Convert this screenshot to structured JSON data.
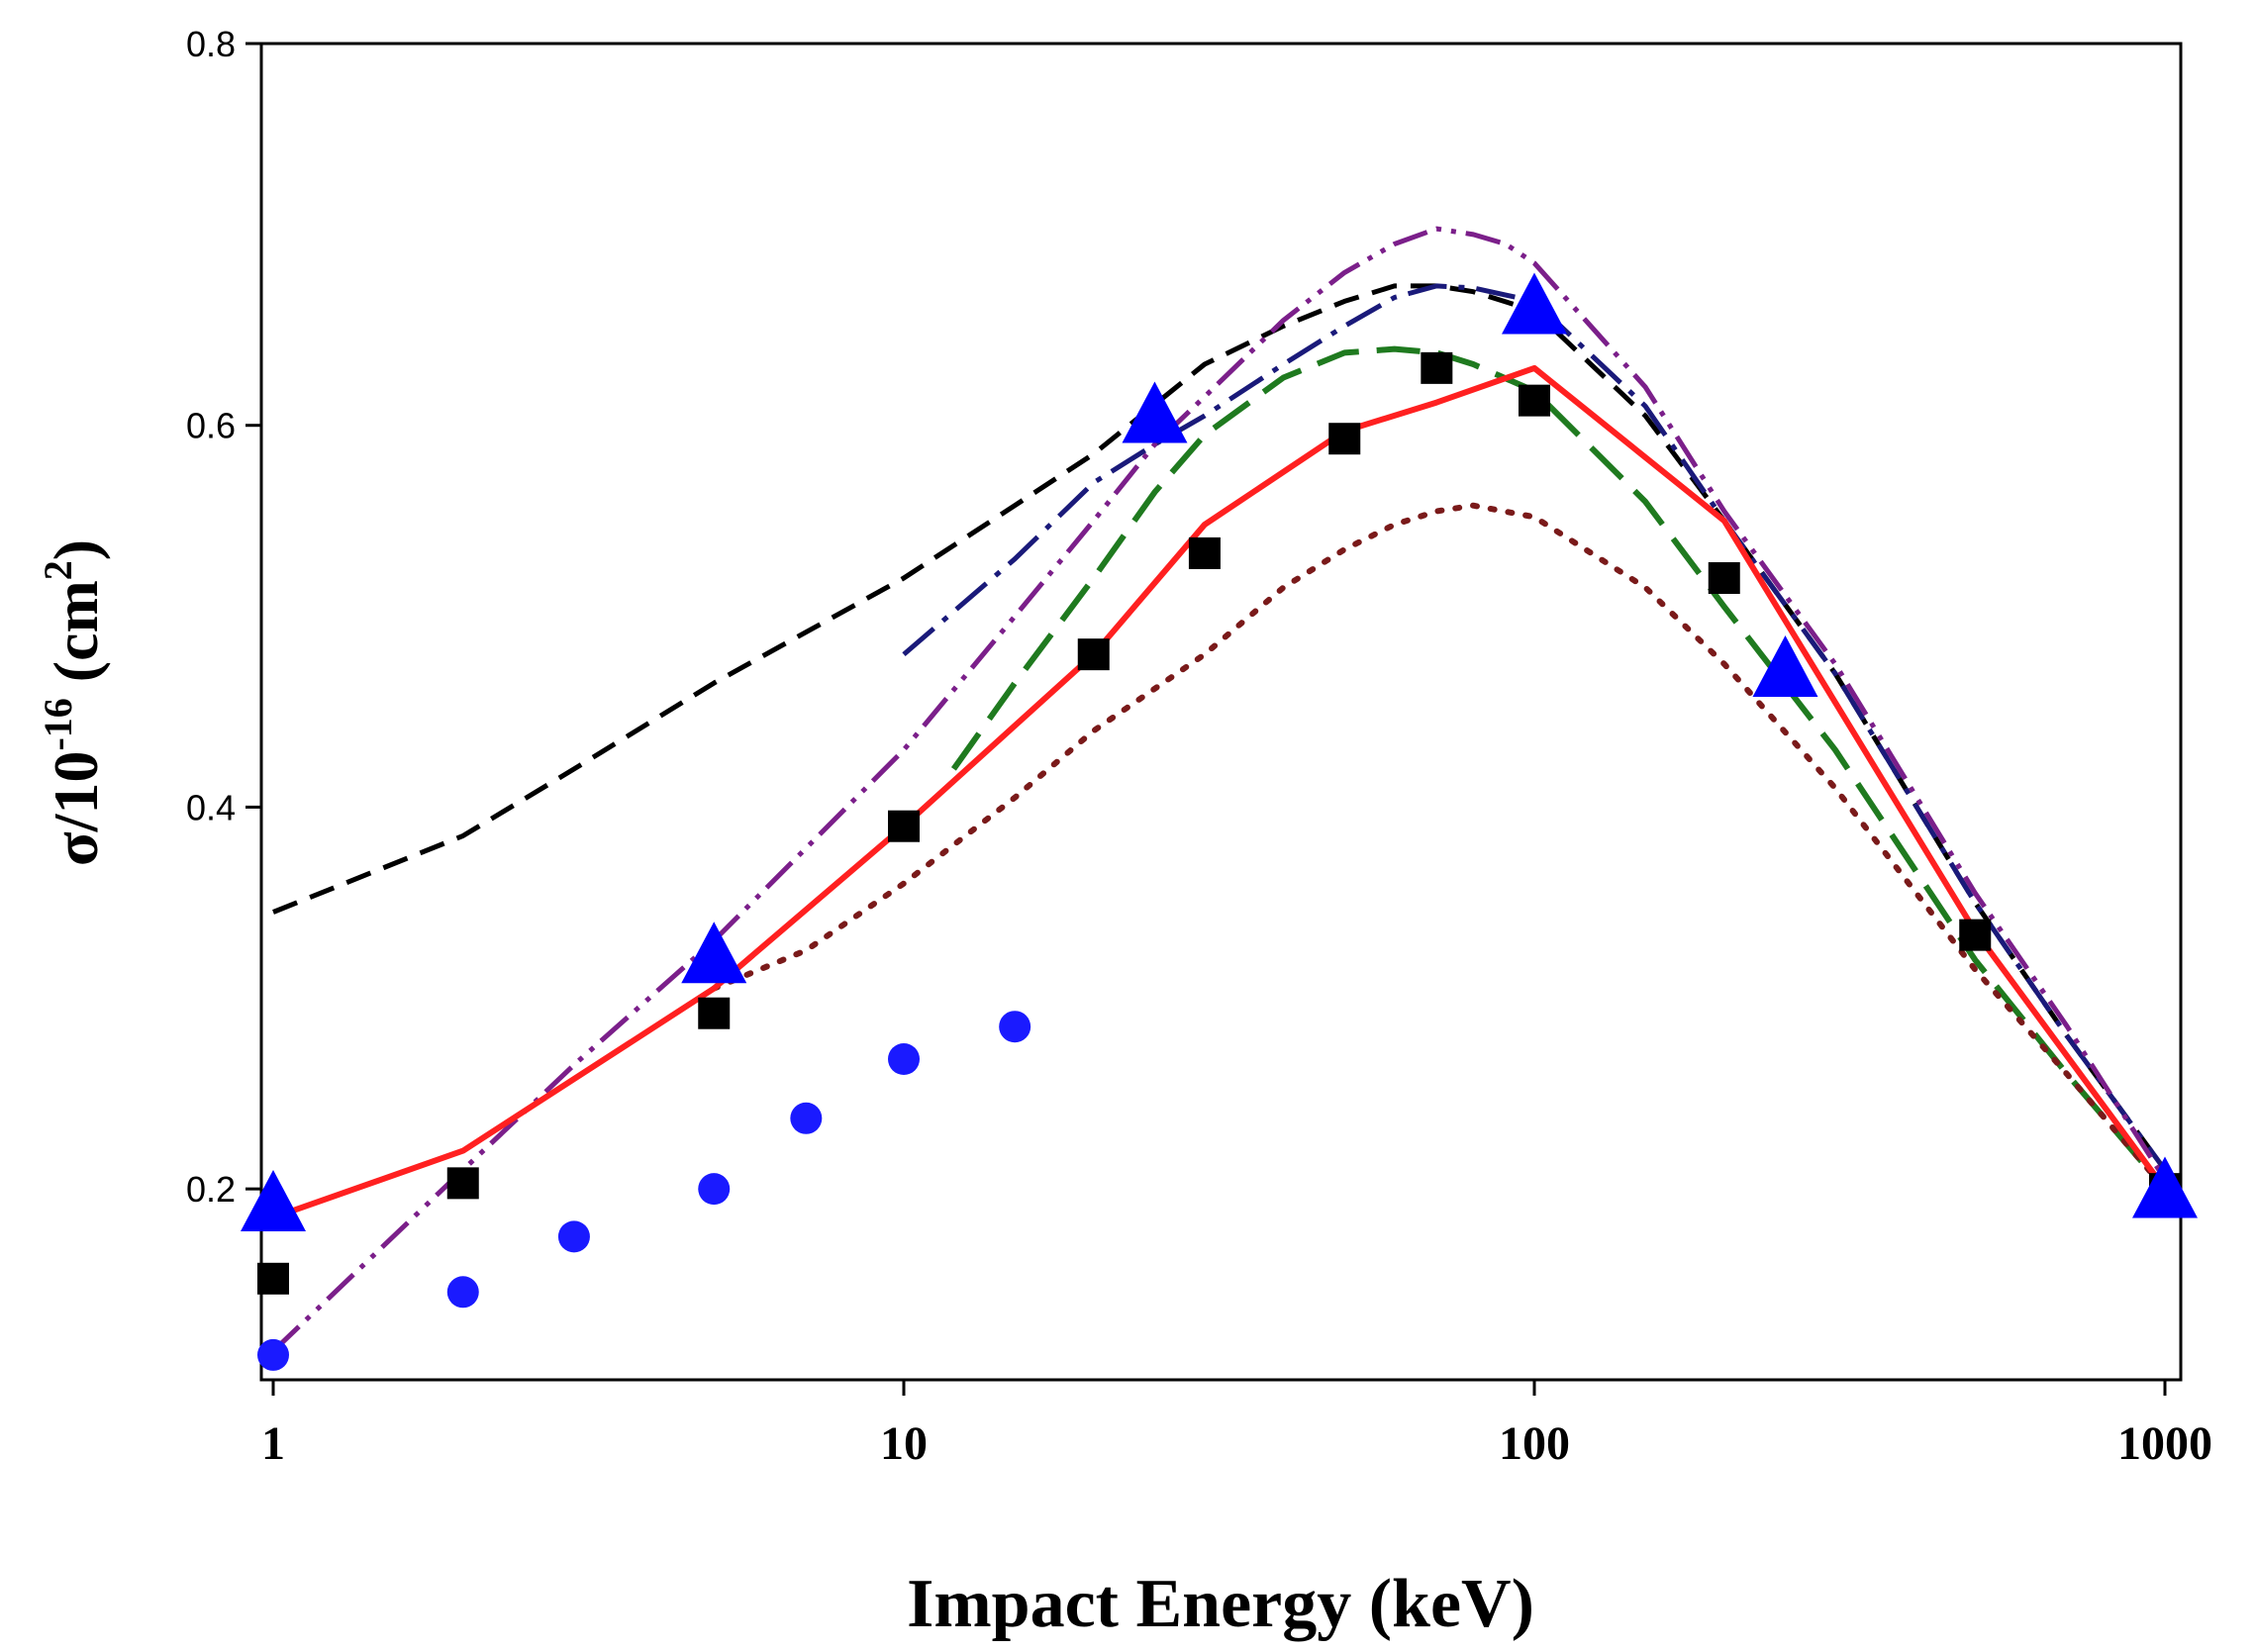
{
  "chart_data": {
    "type": "line",
    "title": "",
    "xlabel": "Impact Energy (keV)",
    "ylabel": {
      "sigma": "σ/10",
      "exp": "-16",
      "unit_open": " (cm",
      "unit_exp": "2",
      "unit_close": ")"
    },
    "xscale": "log",
    "xlim": [
      1,
      1000
    ],
    "ylim": [
      0.1,
      0.8
    ],
    "xticks": [
      {
        "value": 1,
        "label": "1"
      },
      {
        "value": 10,
        "label": "10"
      },
      {
        "value": 100,
        "label": "100"
      },
      {
        "value": 1000,
        "label": "1000"
      }
    ],
    "yticks": [
      {
        "value": 0.2,
        "label": "0.2"
      },
      {
        "value": 0.4,
        "label": "0.4"
      },
      {
        "value": 0.6,
        "label": "0.6"
      },
      {
        "value": 0.8,
        "label": "0.8"
      }
    ],
    "legend": "none",
    "series": [
      {
        "name": "black-dashed",
        "style": "dashed",
        "color": "#000000",
        "x": [
          1,
          2,
          3,
          5,
          10,
          20,
          30,
          40,
          50,
          60,
          70,
          80,
          100,
          150,
          200,
          300,
          500,
          700,
          1000
        ],
        "y": [
          0.345,
          0.385,
          0.42,
          0.465,
          0.52,
          0.585,
          0.632,
          0.652,
          0.665,
          0.673,
          0.673,
          0.67,
          0.66,
          0.605,
          0.55,
          0.47,
          0.35,
          0.28,
          0.21
        ]
      },
      {
        "name": "navy-dash-dot",
        "style": "dashdot",
        "color": "#1a1a7a",
        "x": [
          10,
          15,
          20,
          25,
          30,
          40,
          50,
          60,
          70,
          80,
          100,
          150,
          200,
          300,
          500,
          700,
          1000
        ],
        "y": [
          0.48,
          0.53,
          0.57,
          0.59,
          0.605,
          0.632,
          0.652,
          0.667,
          0.673,
          0.672,
          0.665,
          0.61,
          0.55,
          0.47,
          0.35,
          0.28,
          0.21
        ]
      },
      {
        "name": "purple-dash-dot-dot",
        "style": "dashdotdot",
        "color": "#7b1f8a",
        "x": [
          1,
          2,
          3,
          5,
          10,
          15,
          20,
          25,
          30,
          40,
          50,
          60,
          70,
          80,
          90,
          100,
          150,
          200,
          300,
          500,
          700,
          1000
        ],
        "y": [
          0.115,
          0.21,
          0.265,
          0.33,
          0.43,
          0.5,
          0.55,
          0.59,
          0.615,
          0.655,
          0.68,
          0.695,
          0.703,
          0.7,
          0.695,
          0.685,
          0.62,
          0.555,
          0.475,
          0.355,
          0.285,
          0.205
        ]
      },
      {
        "name": "green-long-dash",
        "style": "longdash",
        "color": "#1f7a1f",
        "x": [
          12,
          15,
          20,
          25,
          30,
          40,
          50,
          60,
          70,
          80,
          100,
          150,
          200,
          300,
          500,
          700,
          1000
        ],
        "y": [
          0.42,
          0.465,
          0.52,
          0.565,
          0.595,
          0.625,
          0.638,
          0.64,
          0.638,
          0.632,
          0.618,
          0.56,
          0.505,
          0.43,
          0.32,
          0.26,
          0.2
        ]
      },
      {
        "name": "brown-dotted",
        "style": "dotted",
        "color": "#7a1a1a",
        "x": [
          5,
          7,
          10,
          15,
          20,
          30,
          40,
          50,
          60,
          70,
          80,
          100,
          150,
          200,
          300,
          500,
          700,
          1000
        ],
        "y": [
          0.305,
          0.325,
          0.36,
          0.405,
          0.44,
          0.48,
          0.515,
          0.535,
          0.548,
          0.555,
          0.558,
          0.552,
          0.515,
          0.475,
          0.41,
          0.315,
          0.26,
          0.2
        ]
      },
      {
        "name": "red-solid",
        "style": "solid",
        "color": "#ff2020",
        "x": [
          1,
          2,
          5,
          10,
          20,
          30,
          50,
          70,
          100,
          200,
          500,
          1000
        ],
        "y": [
          0.185,
          0.22,
          0.305,
          0.39,
          0.48,
          0.548,
          0.597,
          0.612,
          0.63,
          0.55,
          0.335,
          0.2
        ]
      }
    ],
    "markers": [
      {
        "name": "black-squares",
        "shape": "square",
        "color": "#000000",
        "x": [
          1,
          2,
          5,
          10,
          20,
          30,
          50,
          70,
          100,
          200,
          500,
          1000
        ],
        "y": [
          0.153,
          0.203,
          0.292,
          0.39,
          0.48,
          0.533,
          0.593,
          0.63,
          0.613,
          0.52,
          0.333,
          0.2
        ]
      },
      {
        "name": "blue-triangles",
        "shape": "triangle",
        "color": "#0000ff",
        "x": [
          1,
          5,
          25,
          100,
          250,
          1000
        ],
        "y": [
          0.19,
          0.32,
          0.603,
          0.66,
          0.47,
          0.197
        ]
      },
      {
        "name": "blue-circles",
        "shape": "circle",
        "color": "#1a1aff",
        "x": [
          1,
          2,
          3,
          5,
          7,
          10,
          15
        ],
        "y": [
          0.113,
          0.146,
          0.175,
          0.2,
          0.237,
          0.268,
          0.285
        ]
      }
    ]
  }
}
